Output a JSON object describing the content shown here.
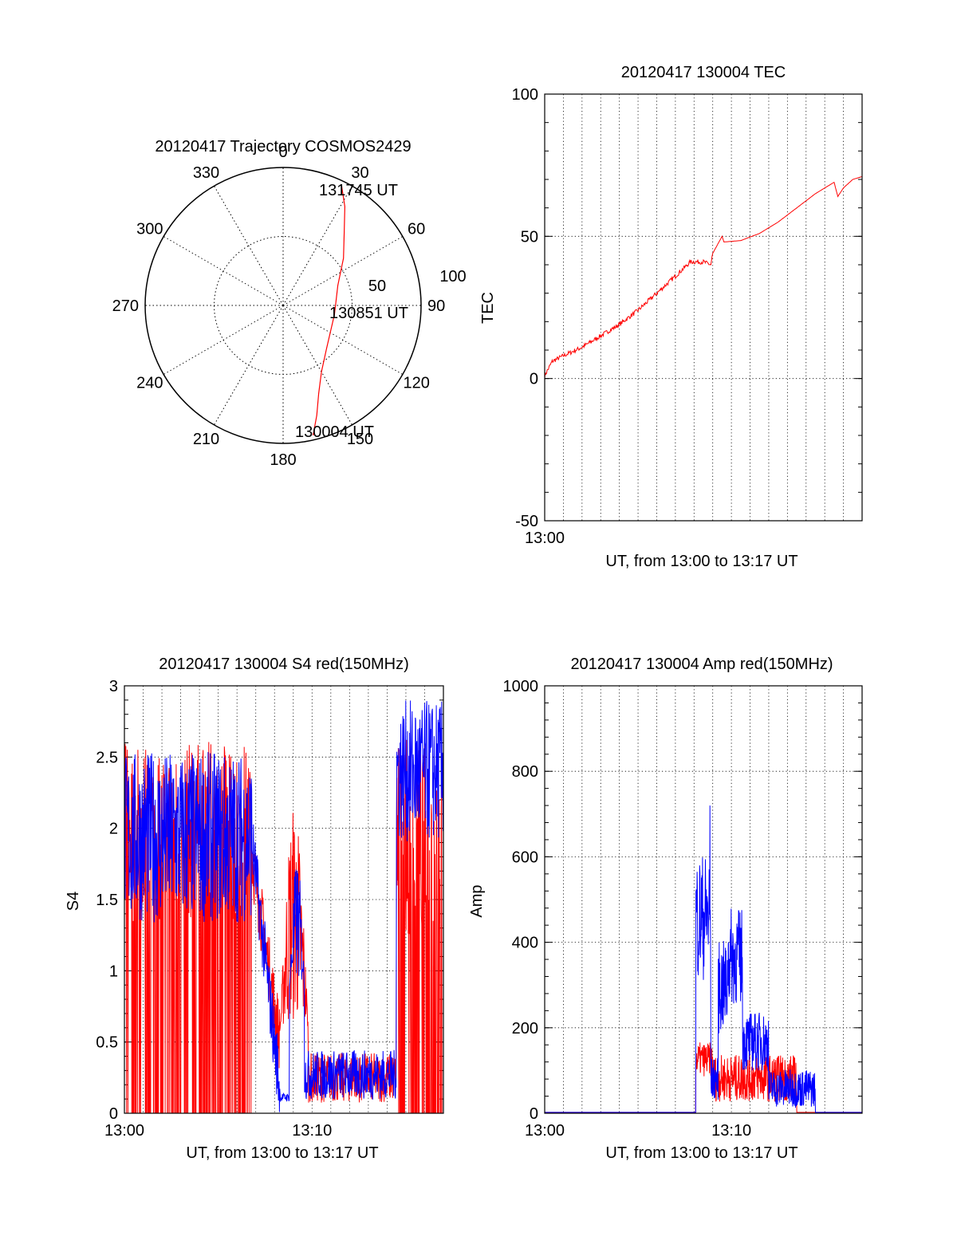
{
  "chart_data": [
    {
      "type": "polar",
      "title": "20120417 Trajectory COSMOS2429",
      "azimuth_labels": [
        "0",
        "30",
        "60",
        "90",
        "120",
        "150",
        "180",
        "210",
        "240",
        "270",
        "300",
        "330"
      ],
      "radial_labels": [
        "50",
        "100"
      ],
      "trajectory_labels": {
        "end": "131745 UT",
        "mid": "130851 UT",
        "start": "130004 UT"
      },
      "trajectory": [
        {
          "az": 167,
          "zen": 87
        },
        {
          "az": 163,
          "zen": 75
        },
        {
          "az": 158,
          "zen": 62
        },
        {
          "az": 150,
          "zen": 50
        },
        {
          "az": 135,
          "zen": 40
        },
        {
          "az": 100,
          "zen": 34
        },
        {
          "az": 70,
          "zen": 38
        },
        {
          "az": 52,
          "zen": 50
        },
        {
          "az": 40,
          "zen": 62
        },
        {
          "az": 32,
          "zen": 76
        },
        {
          "az": 26,
          "zen": 87
        }
      ],
      "colors": {
        "trajectory": "#ff0000"
      }
    },
    {
      "type": "line",
      "title": "20120417 130004 TEC",
      "ylabel": "TEC",
      "xlabel": "UT, from 13:00 to 13:17 UT",
      "ylim": [
        -50,
        100
      ],
      "yticks": [
        "-50",
        "0",
        "50",
        "100"
      ],
      "xticks": [
        "13:00"
      ],
      "series": [
        {
          "color": "#ff0000",
          "points": [
            [
              0,
              1
            ],
            [
              0.4,
              6
            ],
            [
              1,
              8
            ],
            [
              2,
              11
            ],
            [
              3,
              15
            ],
            [
              4,
              19
            ],
            [
              5,
              24
            ],
            [
              6,
              30
            ],
            [
              7,
              36
            ],
            [
              7.8,
              41
            ],
            [
              8.5,
              41
            ],
            [
              8.9,
              40
            ],
            [
              9.0,
              44
            ],
            [
              9.5,
              50
            ],
            [
              9.6,
              48
            ],
            [
              10.5,
              48.5
            ],
            [
              11.5,
              51
            ],
            [
              12.5,
              55
            ],
            [
              13.5,
              60
            ],
            [
              14.5,
              65
            ],
            [
              15.5,
              69
            ],
            [
              15.7,
              64
            ],
            [
              16.0,
              67
            ],
            [
              16.5,
              70
            ],
            [
              17,
              71
            ]
          ]
        }
      ]
    },
    {
      "type": "line",
      "title": "20120417 130004 S4 red(150MHz)",
      "ylabel": "S4",
      "xlabel": "UT, from 13:00 to 13:17 UT",
      "ylim": [
        0,
        3
      ],
      "yticks": [
        "0",
        "0.5",
        "1",
        "1.5",
        "2",
        "2.5",
        "3"
      ],
      "xticks": [
        "13:00",
        "13:10"
      ],
      "series": [
        {
          "color": "#ff0000",
          "segments": [
            {
              "x0": 0,
              "x1": 6.8,
              "mode": "spiky",
              "base": 1.6,
              "amp": 0.9,
              "drop_to": 0
            },
            {
              "x0": 6.8,
              "x1": 8.3,
              "mode": "decay",
              "from": 1.8,
              "to": 0.5
            },
            {
              "x0": 8.3,
              "x1": 9.8,
              "mode": "burst",
              "base": 0.6,
              "amp": 1.6
            },
            {
              "x0": 9.8,
              "x1": 14.5,
              "mode": "noise",
              "base": 0.18,
              "amp": 0.35
            },
            {
              "x0": 14.5,
              "x1": 17,
              "mode": "spiky",
              "base": 1.5,
              "amp": 1.0,
              "drop_to": 0
            }
          ]
        },
        {
          "color": "#0000ff",
          "segments": [
            {
              "x0": 0,
              "x1": 6.8,
              "mode": "noise",
              "base": 1.7,
              "amp": 1.2
            },
            {
              "x0": 6.8,
              "x1": 8.3,
              "mode": "decay",
              "from": 1.9,
              "to": 0.15
            },
            {
              "x0": 8.3,
              "x1": 8.8,
              "mode": "noise",
              "base": 0.1,
              "amp": 0.06
            },
            {
              "x0": 8.8,
              "x1": 9.6,
              "mode": "burst",
              "base": 0.9,
              "amp": 0.9
            },
            {
              "x0": 9.6,
              "x1": 14.5,
              "mode": "noise",
              "base": 0.2,
              "amp": 0.35
            },
            {
              "x0": 14.5,
              "x1": 17,
              "mode": "noise",
              "base": 2.2,
              "amp": 1.0
            }
          ]
        }
      ]
    },
    {
      "type": "line",
      "title": "20120417 130004 Amp red(150MHz)",
      "ylabel": "Amp",
      "xlabel": "UT, from 13:00 to 13:17 UT",
      "ylim": [
        0,
        1000
      ],
      "yticks": [
        "0",
        "200",
        "400",
        "600",
        "800",
        "1000"
      ],
      "xticks": [
        "13:00",
        "13:10"
      ],
      "series": [
        {
          "color": "#ff0000",
          "segments": [
            {
              "x0": 0,
              "x1": 8.1,
              "mode": "flat",
              "value": 2
            },
            {
              "x0": 8.1,
              "x1": 9.0,
              "mode": "noise",
              "base": 110,
              "amp": 80
            },
            {
              "x0": 9.0,
              "x1": 13.5,
              "mode": "noise",
              "base": 60,
              "amp": 110
            },
            {
              "x0": 13.5,
              "x1": 17,
              "mode": "flat",
              "value": 2
            }
          ]
        },
        {
          "color": "#0000ff",
          "segments": [
            {
              "x0": 0,
              "x1": 8.1,
              "mode": "flat",
              "value": 2
            },
            {
              "x0": 8.1,
              "x1": 8.9,
              "mode": "noise",
              "base": 400,
              "amp": 300
            },
            {
              "x0": 8.9,
              "x1": 9.3,
              "mode": "noise",
              "base": 60,
              "amp": 100
            },
            {
              "x0": 9.3,
              "x1": 9.8,
              "mode": "noise",
              "base": 250,
              "amp": 220
            },
            {
              "x0": 9.8,
              "x1": 10.6,
              "mode": "noise",
              "base": 320,
              "amp": 230
            },
            {
              "x0": 10.6,
              "x1": 12.0,
              "mode": "noise",
              "base": 140,
              "amp": 140
            },
            {
              "x0": 12.0,
              "x1": 14.5,
              "mode": "noise",
              "base": 40,
              "amp": 90
            },
            {
              "x0": 14.5,
              "x1": 17,
              "mode": "flat",
              "value": 2
            }
          ],
          "peak": {
            "x": 8.85,
            "value": 720
          }
        }
      ]
    }
  ]
}
